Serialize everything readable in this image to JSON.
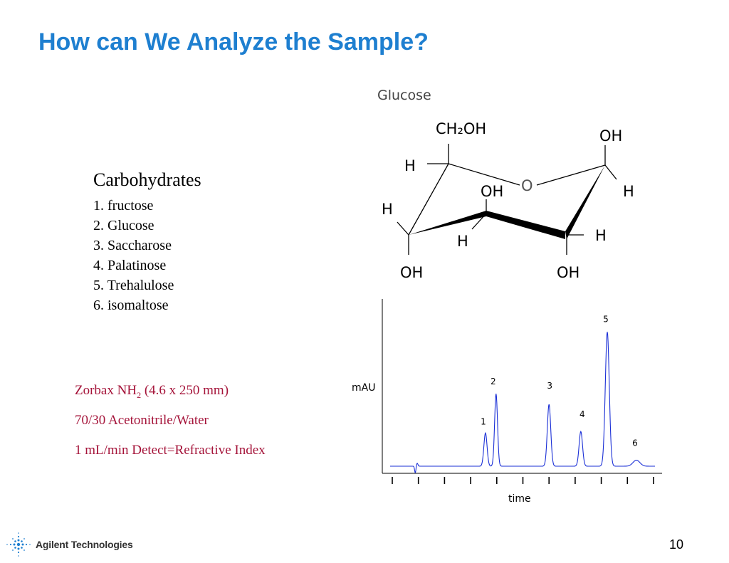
{
  "slide": {
    "title": "How can We Analyze the Sample?",
    "page_number": "10",
    "company": "Agilent Technologies"
  },
  "carbohydrates": {
    "heading": "Carbohydrates",
    "items": [
      "1.  fructose",
      "2.  Glucose",
      "3.  Saccharose",
      "4.  Palatinose",
      "5.  Trehalulose",
      "6.  isomaltose"
    ]
  },
  "conditions": {
    "column_prefix": "Zorbax NH",
    "column_subscript": "2",
    "column_suffix": " (4.6 x 250 mm)",
    "mobile_phase": "70/30 Acetonitrile/Water",
    "flow_detect": "1 mL/min  Detect=Refractive Index"
  },
  "glucose": {
    "title": "Glucose",
    "labels": {
      "ch2oh": "CH₂OH",
      "oh": "OH",
      "h": "H",
      "o": "O"
    }
  },
  "chart_data": {
    "type": "line",
    "ylabel": "mAU",
    "xlabel": "time",
    "x_tick_count": 11,
    "line_color": "#1a2fd6",
    "series": [
      {
        "peaks": [
          {
            "label": "1",
            "rel_time": 0.36,
            "height": 0.22
          },
          {
            "label": "2",
            "rel_time": 0.4,
            "height": 0.48
          },
          {
            "label": "3",
            "rel_time": 0.6,
            "height": 0.41
          },
          {
            "label": "4",
            "rel_time": 0.72,
            "height": 0.23
          },
          {
            "label": "5",
            "rel_time": 0.82,
            "height": 0.89
          },
          {
            "label": "6",
            "rel_time": 0.93,
            "height": 0.04
          }
        ]
      }
    ]
  }
}
